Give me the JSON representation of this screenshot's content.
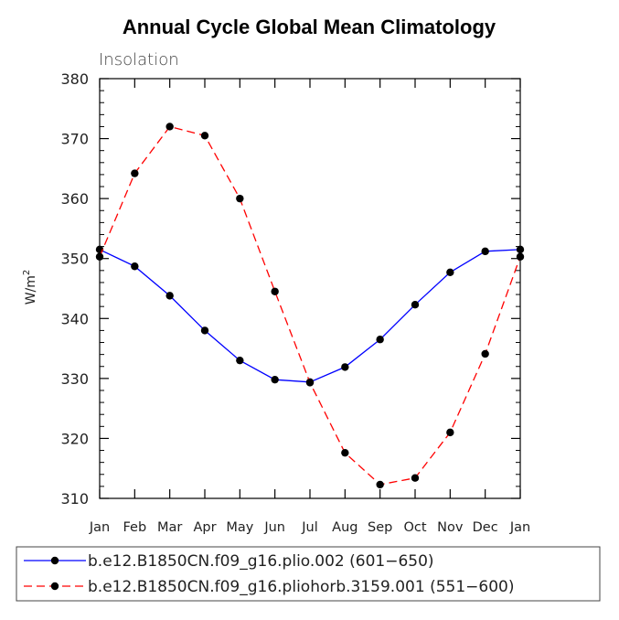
{
  "chart_data": {
    "type": "line",
    "title": "Annual Cycle Global Mean Climatology",
    "subtitle": "Insolation",
    "xlabel": "",
    "ylabel": "W/m",
    "ylabel_superscript": "2",
    "categories": [
      "Jan",
      "Feb",
      "Mar",
      "Apr",
      "May",
      "Jun",
      "Jul",
      "Aug",
      "Sep",
      "Oct",
      "Nov",
      "Dec",
      "Jan"
    ],
    "ylim": [
      310,
      380
    ],
    "yticks": [
      310,
      320,
      330,
      340,
      350,
      360,
      370,
      380
    ],
    "grid": false,
    "legend_position": "bottom",
    "series": [
      {
        "name": "b.e12.B1850CN.f09_g16.plio.002 (601−650)",
        "color": "#0000ff",
        "line_style": "solid",
        "marker": "circle",
        "values": [
          351.5,
          348.7,
          343.8,
          338.0,
          333.0,
          329.8,
          329.4,
          331.9,
          336.5,
          342.3,
          347.7,
          351.2,
          351.5
        ]
      },
      {
        "name": "b.e12.B1850CN.f09_g16.pliohorb.3159.001 (551−600)",
        "color": "#ff0000",
        "line_style": "dashed",
        "marker": "circle",
        "values": [
          350.3,
          364.2,
          372.0,
          370.5,
          360.0,
          344.5,
          329.3,
          317.6,
          312.3,
          313.4,
          321.0,
          334.1,
          350.3
        ]
      }
    ]
  }
}
